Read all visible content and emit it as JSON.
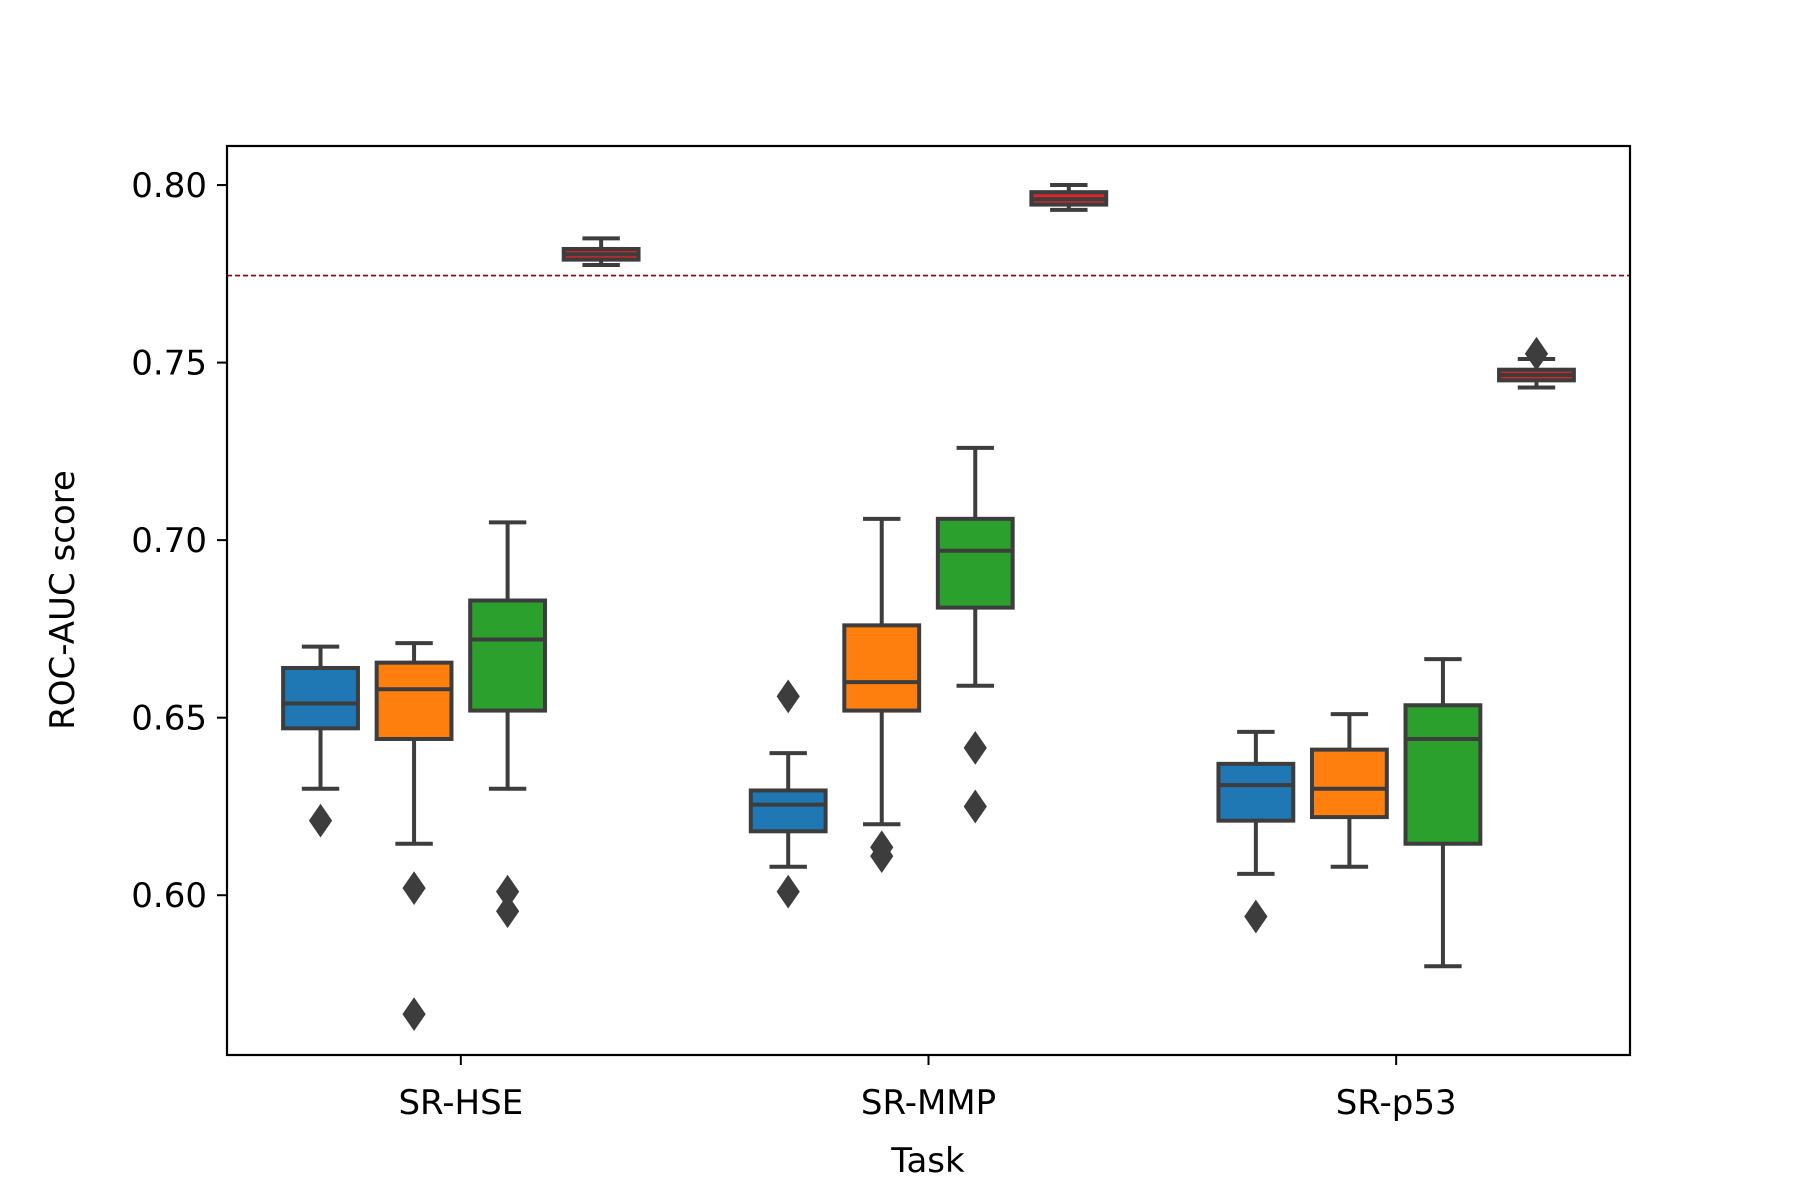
{
  "chart_data": {
    "type": "box",
    "xlabel": "Task",
    "ylabel": "ROC-AUC score",
    "categories": [
      "SR-HSE",
      "SR-MMP",
      "SR-p53"
    ],
    "ylim": [
      0.555,
      0.811
    ],
    "yticks": [
      0.6,
      0.65,
      0.7,
      0.75,
      0.8
    ],
    "ytick_labels": [
      "0.60",
      "0.65",
      "0.70",
      "0.75",
      "0.80"
    ],
    "reference_line": {
      "y": 0.7745,
      "color": "#8b0000",
      "style": "dashed"
    },
    "grid": false,
    "legend": "none",
    "series": [
      {
        "color": "#1f77b4",
        "boxes": [
          {
            "category": "SR-HSE",
            "whisker_low": 0.63,
            "q1": 0.647,
            "median": 0.654,
            "q3": 0.664,
            "whisker_high": 0.67,
            "outliers": [
              0.621
            ]
          },
          {
            "category": "SR-MMP",
            "whisker_low": 0.608,
            "q1": 0.618,
            "median": 0.6255,
            "q3": 0.6295,
            "whisker_high": 0.64,
            "outliers": [
              0.656,
              0.601
            ]
          },
          {
            "category": "SR-p53",
            "whisker_low": 0.606,
            "q1": 0.621,
            "median": 0.631,
            "q3": 0.637,
            "whisker_high": 0.646,
            "outliers": [
              0.594
            ]
          }
        ]
      },
      {
        "color": "#ff7f0e",
        "boxes": [
          {
            "category": "SR-HSE",
            "whisker_low": 0.6145,
            "q1": 0.644,
            "median": 0.658,
            "q3": 0.6655,
            "whisker_high": 0.671,
            "outliers": [
              0.602,
              0.5665
            ]
          },
          {
            "category": "SR-MMP",
            "whisker_low": 0.62,
            "q1": 0.652,
            "median": 0.66,
            "q3": 0.676,
            "whisker_high": 0.706,
            "outliers": [
              0.6135,
              0.611
            ]
          },
          {
            "category": "SR-p53",
            "whisker_low": 0.608,
            "q1": 0.622,
            "median": 0.63,
            "q3": 0.641,
            "whisker_high": 0.651,
            "outliers": []
          }
        ]
      },
      {
        "color": "#2ca02c",
        "boxes": [
          {
            "category": "SR-HSE",
            "whisker_low": 0.63,
            "q1": 0.652,
            "median": 0.672,
            "q3": 0.683,
            "whisker_high": 0.705,
            "outliers": [
              0.601,
              0.5955
            ]
          },
          {
            "category": "SR-MMP",
            "whisker_low": 0.659,
            "q1": 0.681,
            "median": 0.697,
            "q3": 0.706,
            "whisker_high": 0.726,
            "outliers": [
              0.6415,
              0.625
            ]
          },
          {
            "category": "SR-p53",
            "whisker_low": 0.58,
            "q1": 0.6145,
            "median": 0.644,
            "q3": 0.6535,
            "whisker_high": 0.6665,
            "outliers": []
          }
        ]
      },
      {
        "color": "#d62728",
        "boxes": [
          {
            "category": "SR-HSE",
            "whisker_low": 0.7775,
            "q1": 0.779,
            "median": 0.7805,
            "q3": 0.782,
            "whisker_high": 0.785,
            "outliers": []
          },
          {
            "category": "SR-MMP",
            "whisker_low": 0.793,
            "q1": 0.7945,
            "median": 0.796,
            "q3": 0.798,
            "whisker_high": 0.8,
            "outliers": []
          },
          {
            "category": "SR-p53",
            "whisker_low": 0.743,
            "q1": 0.745,
            "median": 0.7465,
            "q3": 0.748,
            "whisker_high": 0.751,
            "outliers": [
              0.7525
            ]
          }
        ]
      }
    ]
  }
}
